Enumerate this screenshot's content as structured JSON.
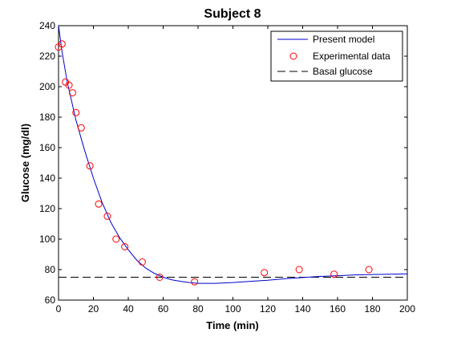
{
  "chart_data": {
    "type": "line",
    "title": "Subject 8",
    "xlabel": "Time (min)",
    "ylabel": "Glucose (mg/dl)",
    "xlim": [
      0,
      200
    ],
    "ylim": [
      60,
      240
    ],
    "xticks": [
      0,
      20,
      40,
      60,
      80,
      100,
      120,
      140,
      160,
      180,
      200
    ],
    "yticks": [
      60,
      80,
      100,
      120,
      140,
      160,
      180,
      200,
      220,
      240
    ],
    "grid": false,
    "legend_position": "top-right",
    "colors": {
      "model": "#0000cc",
      "data": "#ff0000",
      "basal": "#000000"
    },
    "series": [
      {
        "name": "Present model",
        "style": "solid-line",
        "x": [
          0,
          2,
          5,
          10,
          15,
          20,
          25,
          30,
          35,
          40,
          45,
          50,
          55,
          60,
          65,
          70,
          75,
          80,
          90,
          100,
          110,
          120,
          130,
          140,
          150,
          160,
          170,
          180,
          190,
          200
        ],
        "y": [
          240,
          223,
          203,
          178,
          158,
          140,
          124,
          111,
          101,
          93,
          86,
          81,
          77.5,
          75,
          73.3,
          72.3,
          71.5,
          71,
          71,
          71.5,
          72.3,
          73,
          74,
          74.8,
          75.5,
          76,
          76.5,
          76.8,
          77,
          77.2
        ]
      },
      {
        "name": "Experimental data",
        "style": "markers",
        "x": [
          0,
          2,
          4,
          6,
          8,
          10,
          13,
          18,
          23,
          28,
          33,
          38,
          48,
          58,
          78,
          118,
          138,
          158,
          178
        ],
        "y": [
          226,
          228,
          203,
          201,
          196,
          183,
          173,
          148,
          123,
          115,
          100,
          95,
          85,
          75,
          72,
          78,
          80,
          77,
          80
        ]
      },
      {
        "name": "Basal glucose",
        "style": "dashed-line",
        "x": [
          0,
          200
        ],
        "y": [
          75,
          75
        ]
      }
    ]
  }
}
